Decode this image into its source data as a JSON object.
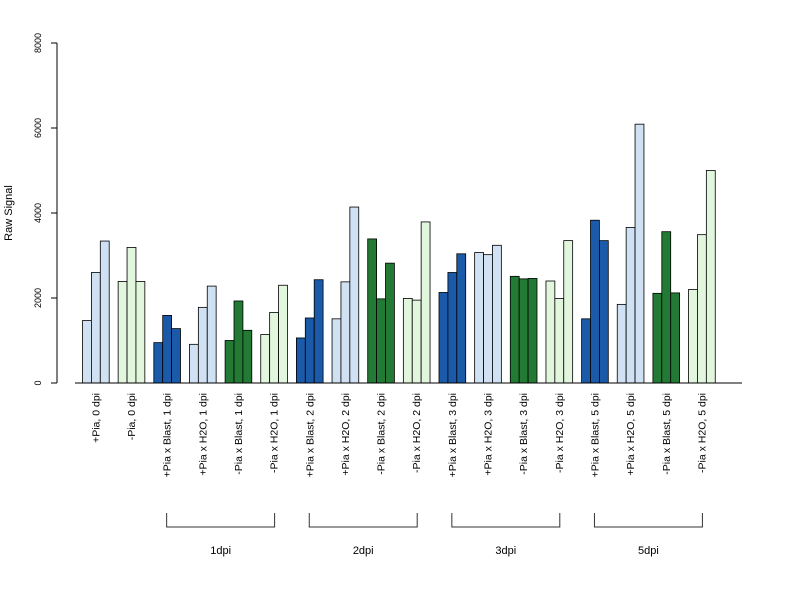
{
  "chart_data": {
    "type": "bar",
    "ylabel": "Raw Signal",
    "ylim": [
      0,
      8000
    ],
    "yticks": [
      "0",
      "2000",
      "4000",
      "6000",
      "8000"
    ],
    "grid": false,
    "legend": "none",
    "colors": {
      "pia_plus_light": "#d0e1f3",
      "pia_minus_light": "#e2f6dd",
      "pia_plus_blast": "#1a5aa8",
      "pia_minus_blast": "#237a34",
      "outline": "#000000"
    },
    "groups": [
      {
        "label": "+Pia, 0 dpi",
        "color_key": "pia_plus_light",
        "values": [
          1470,
          2600,
          3340
        ]
      },
      {
        "label": "-Pia, 0 dpi",
        "color_key": "pia_minus_light",
        "values": [
          2390,
          3190,
          2390
        ]
      },
      {
        "label": "+Pia x Blast, 1 dpi",
        "color_key": "pia_plus_blast",
        "values": [
          950,
          1590,
          1280
        ]
      },
      {
        "label": "+Pia x H2O, 1 dpi",
        "color_key": "pia_plus_light",
        "values": [
          910,
          1780,
          2280
        ]
      },
      {
        "label": "-Pia x Blast, 1 dpi",
        "color_key": "pia_minus_blast",
        "values": [
          1000,
          1930,
          1240
        ]
      },
      {
        "label": "-Pia x H2O, 1 dpi",
        "color_key": "pia_minus_light",
        "values": [
          1140,
          1660,
          2300
        ]
      },
      {
        "label": "+Pia x Blast, 2 dpi",
        "color_key": "pia_plus_blast",
        "values": [
          1060,
          1530,
          2430
        ]
      },
      {
        "label": "+Pia x H2O, 2 dpi",
        "color_key": "pia_plus_light",
        "values": [
          1510,
          2380,
          4140
        ]
      },
      {
        "label": "-Pia x Blast, 2 dpi",
        "color_key": "pia_minus_blast",
        "values": [
          3390,
          1980,
          2820
        ]
      },
      {
        "label": "-Pia x H2O, 2 dpi",
        "color_key": "pia_minus_light",
        "values": [
          1990,
          1950,
          3790
        ]
      },
      {
        "label": "+Pia x Blast, 3 dpi",
        "color_key": "pia_plus_blast",
        "values": [
          2130,
          2600,
          3040
        ]
      },
      {
        "label": "+Pia x H2O, 3 dpi",
        "color_key": "pia_plus_light",
        "values": [
          3070,
          3020,
          3240
        ]
      },
      {
        "label": "-Pia x Blast, 3 dpi",
        "color_key": "pia_minus_blast",
        "values": [
          2510,
          2450,
          2460
        ]
      },
      {
        "label": "-Pia x H2O, 3 dpi",
        "color_key": "pia_minus_light",
        "values": [
          2400,
          1990,
          3350
        ]
      },
      {
        "label": "+Pia x Blast, 5 dpi",
        "color_key": "pia_plus_blast",
        "values": [
          1510,
          3830,
          3350
        ]
      },
      {
        "label": "+Pia x H2O, 5 dpi",
        "color_key": "pia_plus_light",
        "values": [
          1850,
          3660,
          6090
        ]
      },
      {
        "label": "-Pia x Blast, 5 dpi",
        "color_key": "pia_minus_blast",
        "values": [
          2110,
          3560,
          2120
        ]
      },
      {
        "label": "-Pia x H2O, 5 dpi",
        "color_key": "pia_minus_light",
        "values": [
          2200,
          3490,
          5000
        ]
      }
    ],
    "brackets": [
      {
        "label": "1dpi",
        "first_group": 2,
        "last_group": 5
      },
      {
        "label": "2dpi",
        "first_group": 6,
        "last_group": 9
      },
      {
        "label": "3dpi",
        "first_group": 10,
        "last_group": 13
      },
      {
        "label": "5dpi",
        "first_group": 14,
        "last_group": 17
      }
    ]
  }
}
